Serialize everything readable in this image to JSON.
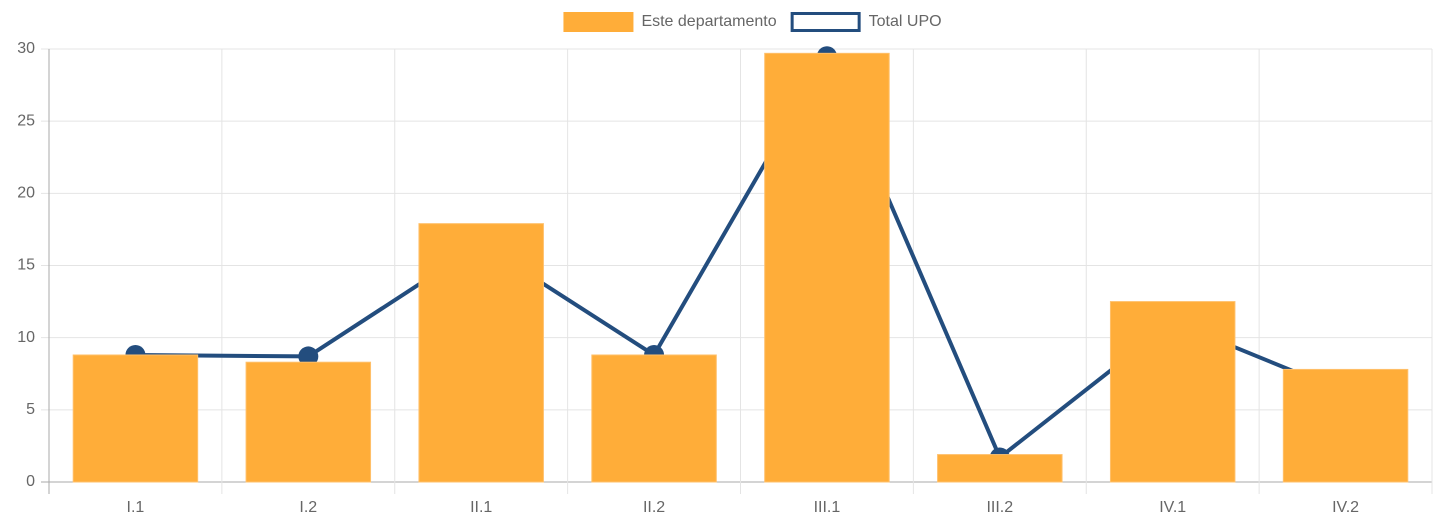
{
  "chart_data": {
    "type": "bar-line",
    "categories": [
      "I.1",
      "I.2",
      "II.1",
      "II.2",
      "III.1",
      "III.2",
      "IV.1",
      "IV.2"
    ],
    "series": [
      {
        "name": "Este departamento",
        "type": "bar",
        "color": "#ffad39",
        "values": [
          8.8,
          8.3,
          17.9,
          8.8,
          29.7,
          1.9,
          12.5,
          7.8
        ]
      },
      {
        "name": "Total UPO",
        "type": "line",
        "color": "#234d7e",
        "values": [
          8.8,
          8.7,
          16.5,
          8.8,
          29.5,
          1.7,
          11.1,
          6.2
        ]
      }
    ],
    "ylim": [
      0,
      30
    ],
    "yticks": [
      0,
      5,
      10,
      15,
      20,
      25,
      30
    ],
    "grid": true,
    "legend": "top"
  }
}
